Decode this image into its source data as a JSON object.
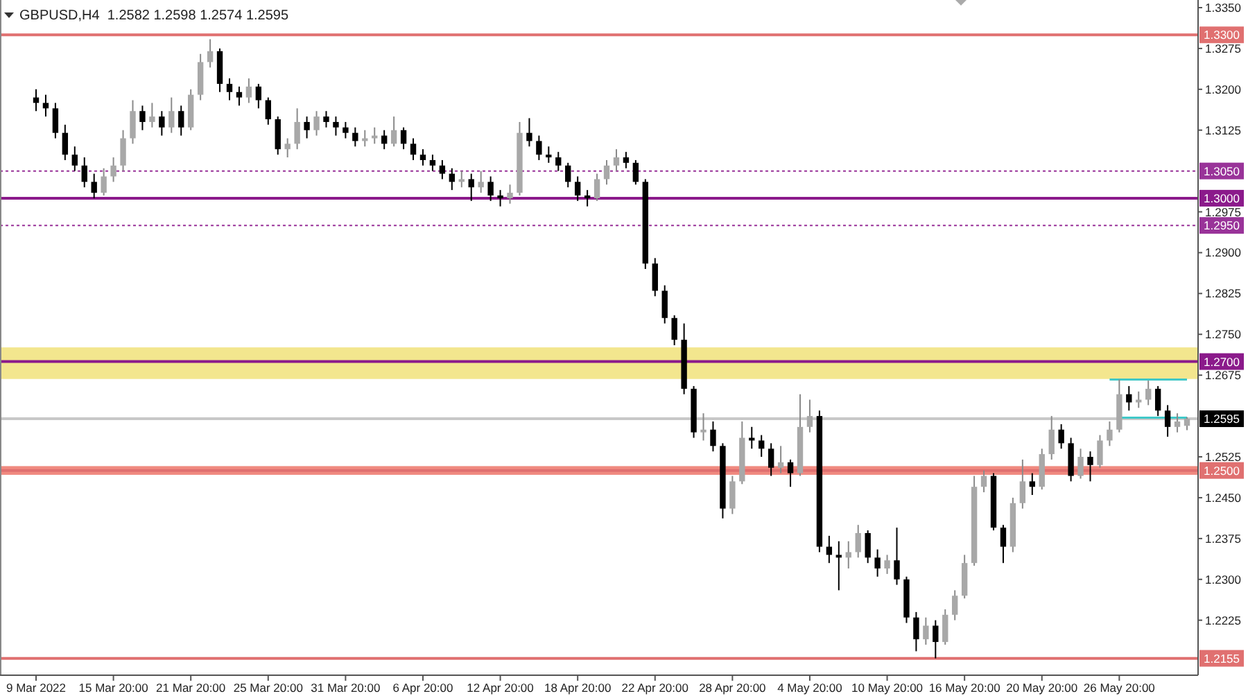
{
  "chart_data": {
    "type": "candlestick",
    "title": "GBPUSD,H4  1.2582 1.2598 1.2574 1.2595",
    "categories": [
      "9 Mar 2022",
      null,
      null,
      null,
      null,
      null,
      null,
      null,
      "15 Mar 20:00",
      null,
      null,
      null,
      null,
      null,
      null,
      null,
      "21 Mar 20:00",
      null,
      null,
      null,
      null,
      null,
      null,
      null,
      "25 Mar 20:00",
      null,
      null,
      null,
      null,
      null,
      null,
      null,
      "31 Mar 20:00",
      null,
      null,
      null,
      null,
      null,
      null,
      null,
      "6 Apr 20:00",
      null,
      null,
      null,
      null,
      null,
      null,
      null,
      "12 Apr 20:00",
      null,
      null,
      null,
      null,
      null,
      null,
      null,
      "18 Apr 20:00",
      null,
      null,
      null,
      null,
      null,
      null,
      null,
      "22 Apr 20:00",
      null,
      null,
      null,
      null,
      null,
      null,
      null,
      "28 Apr 20:00",
      null,
      null,
      null,
      null,
      null,
      null,
      null,
      "4 May 20:00",
      null,
      null,
      null,
      null,
      null,
      null,
      null,
      "10 May 20:00",
      null,
      null,
      null,
      null,
      null,
      null,
      null,
      "16 May 20:00",
      null,
      null,
      null,
      null,
      null,
      null,
      null,
      "20 May 20:00",
      null,
      null,
      null,
      null,
      null,
      null,
      null,
      "26 May 20:00",
      null,
      null,
      null,
      null,
      null,
      null,
      null
    ],
    "ohlc": [
      [
        1.3185,
        1.32,
        1.316,
        1.3175
      ],
      [
        1.3175,
        1.319,
        1.315,
        1.3165
      ],
      [
        1.3165,
        1.3175,
        1.311,
        1.312
      ],
      [
        1.312,
        1.3135,
        1.307,
        1.308
      ],
      [
        1.308,
        1.3095,
        1.305,
        1.306
      ],
      [
        1.306,
        1.3075,
        1.302,
        1.303
      ],
      [
        1.303,
        1.3045,
        1.3,
        1.301
      ],
      [
        1.301,
        1.3055,
        1.3005,
        1.304
      ],
      [
        1.304,
        1.3075,
        1.303,
        1.306
      ],
      [
        1.306,
        1.3125,
        1.305,
        1.311
      ],
      [
        1.311,
        1.318,
        1.31,
        1.316
      ],
      [
        1.316,
        1.317,
        1.3125,
        1.314
      ],
      [
        1.314,
        1.3175,
        1.313,
        1.315
      ],
      [
        1.315,
        1.316,
        1.3115,
        1.313
      ],
      [
        1.313,
        1.3185,
        1.312,
        1.316
      ],
      [
        1.316,
        1.317,
        1.3115,
        1.313
      ],
      [
        1.313,
        1.32,
        1.3125,
        1.319
      ],
      [
        1.319,
        1.3265,
        1.318,
        1.325
      ],
      [
        1.325,
        1.3292,
        1.324,
        1.327
      ],
      [
        1.327,
        1.3275,
        1.3195,
        1.321
      ],
      [
        1.321,
        1.322,
        1.318,
        1.3195
      ],
      [
        1.3195,
        1.3205,
        1.317,
        1.3185
      ],
      [
        1.3185,
        1.322,
        1.3175,
        1.3205
      ],
      [
        1.3205,
        1.321,
        1.3165,
        1.318
      ],
      [
        1.318,
        1.3185,
        1.3135,
        1.3145
      ],
      [
        1.3145,
        1.315,
        1.308,
        1.309
      ],
      [
        1.309,
        1.311,
        1.3075,
        1.31
      ],
      [
        1.31,
        1.3165,
        1.309,
        1.314
      ],
      [
        1.314,
        1.315,
        1.311,
        1.3125
      ],
      [
        1.3125,
        1.316,
        1.3115,
        1.315
      ],
      [
        1.315,
        1.316,
        1.313,
        1.314
      ],
      [
        1.314,
        1.315,
        1.3115,
        1.313
      ],
      [
        1.313,
        1.314,
        1.311,
        1.312
      ],
      [
        1.312,
        1.313,
        1.3095,
        1.3105
      ],
      [
        1.3105,
        1.3125,
        1.3095,
        1.311
      ],
      [
        1.311,
        1.313,
        1.31,
        1.3115
      ],
      [
        1.3115,
        1.3125,
        1.309,
        1.31
      ],
      [
        1.31,
        1.315,
        1.3095,
        1.3125
      ],
      [
        1.3125,
        1.313,
        1.309,
        1.31
      ],
      [
        1.31,
        1.311,
        1.307,
        1.308
      ],
      [
        1.308,
        1.309,
        1.306,
        1.307
      ],
      [
        1.307,
        1.308,
        1.305,
        1.306
      ],
      [
        1.306,
        1.307,
        1.3035,
        1.3045
      ],
      [
        1.3045,
        1.3055,
        1.3015,
        1.303
      ],
      [
        1.303,
        1.305,
        1.302,
        1.3035
      ],
      [
        1.3035,
        1.3045,
        1.2995,
        1.302
      ],
      [
        1.302,
        1.305,
        1.301,
        1.303
      ],
      [
        1.303,
        1.304,
        1.2995,
        1.3005
      ],
      [
        1.3005,
        1.3015,
        1.2985,
        1.3
      ],
      [
        1.3,
        1.3025,
        1.299,
        1.301
      ],
      [
        1.301,
        1.314,
        1.3005,
        1.312
      ],
      [
        1.312,
        1.3147,
        1.3095,
        1.3105
      ],
      [
        1.3105,
        1.3115,
        1.307,
        1.308
      ],
      [
        1.308,
        1.3095,
        1.3065,
        1.3075
      ],
      [
        1.3075,
        1.3085,
        1.305,
        1.306
      ],
      [
        1.306,
        1.3065,
        1.302,
        1.303
      ],
      [
        1.303,
        1.304,
        1.2995,
        1.3005
      ],
      [
        1.3005,
        1.3015,
        1.2985,
        1.3
      ],
      [
        1.3,
        1.3045,
        1.2995,
        1.3035
      ],
      [
        1.3035,
        1.307,
        1.3025,
        1.306
      ],
      [
        1.306,
        1.309,
        1.305,
        1.3075
      ],
      [
        1.3075,
        1.3085,
        1.3055,
        1.3065
      ],
      [
        1.3065,
        1.307,
        1.3025,
        1.303
      ],
      [
        1.303,
        1.3035,
        1.287,
        1.288
      ],
      [
        1.288,
        1.289,
        1.282,
        1.283
      ],
      [
        1.283,
        1.284,
        1.277,
        1.278
      ],
      [
        1.278,
        1.2785,
        1.273,
        1.274
      ],
      [
        1.274,
        1.277,
        1.264,
        1.265
      ],
      [
        1.265,
        1.2655,
        1.256,
        1.257
      ],
      [
        1.257,
        1.2605,
        1.2555,
        1.2575
      ],
      [
        1.2575,
        1.259,
        1.2535,
        1.2545
      ],
      [
        1.2545,
        1.255,
        1.2412,
        1.243
      ],
      [
        1.243,
        1.249,
        1.242,
        1.248
      ],
      [
        1.248,
        1.259,
        1.2475,
        1.256
      ],
      [
        1.256,
        1.258,
        1.254,
        1.2555
      ],
      [
        1.2555,
        1.2565,
        1.2525,
        1.254
      ],
      [
        1.254,
        1.255,
        1.249,
        1.2505
      ],
      [
        1.2505,
        1.2545,
        1.2495,
        1.2515
      ],
      [
        1.2515,
        1.252,
        1.247,
        1.2495
      ],
      [
        1.2495,
        1.264,
        1.249,
        1.258
      ],
      [
        1.258,
        1.263,
        1.257,
        1.26
      ],
      [
        1.26,
        1.261,
        1.235,
        1.236
      ],
      [
        1.236,
        1.238,
        1.233,
        1.2345
      ],
      [
        1.2345,
        1.237,
        1.228,
        1.234
      ],
      [
        1.234,
        1.237,
        1.232,
        1.235
      ],
      [
        1.235,
        1.24,
        1.234,
        1.2385
      ],
      [
        1.2385,
        1.239,
        1.233,
        1.234
      ],
      [
        1.234,
        1.2355,
        1.2305,
        1.232
      ],
      [
        1.232,
        1.2345,
        1.231,
        1.2335
      ],
      [
        1.2335,
        1.2395,
        1.229,
        1.23
      ],
      [
        1.23,
        1.2305,
        1.222,
        1.223
      ],
      [
        1.223,
        1.224,
        1.2168,
        1.219
      ],
      [
        1.219,
        1.223,
        1.218,
        1.2215
      ],
      [
        1.2215,
        1.2225,
        1.2155,
        1.2185
      ],
      [
        1.2185,
        1.2245,
        1.218,
        1.2235
      ],
      [
        1.2235,
        1.228,
        1.2225,
        1.227
      ],
      [
        1.227,
        1.2345,
        1.2265,
        1.233
      ],
      [
        1.233,
        1.249,
        1.2325,
        1.247
      ],
      [
        1.247,
        1.25,
        1.246,
        1.249
      ],
      [
        1.249,
        1.2495,
        1.239,
        1.2395
      ],
      [
        1.2395,
        1.24,
        1.233,
        1.236
      ],
      [
        1.236,
        1.245,
        1.235,
        1.244
      ],
      [
        1.244,
        1.252,
        1.243,
        1.248
      ],
      [
        1.248,
        1.2495,
        1.2455,
        1.247
      ],
      [
        1.247,
        1.254,
        1.2465,
        1.253
      ],
      [
        1.253,
        1.26,
        1.252,
        1.2575
      ],
      [
        1.2575,
        1.2585,
        1.254,
        1.255
      ],
      [
        1.255,
        1.256,
        1.248,
        1.249
      ],
      [
        1.249,
        1.254,
        1.2485,
        1.2525
      ],
      [
        1.2525,
        1.2535,
        1.248,
        1.251
      ],
      [
        1.251,
        1.2565,
        1.2505,
        1.2555
      ],
      [
        1.2555,
        1.259,
        1.2545,
        1.2575
      ],
      [
        1.2575,
        1.2667,
        1.257,
        1.264
      ],
      [
        1.264,
        1.2655,
        1.261,
        1.2625
      ],
      [
        1.2625,
        1.2645,
        1.2615,
        1.263
      ],
      [
        1.263,
        1.2665,
        1.262,
        1.265
      ],
      [
        1.265,
        1.2655,
        1.26,
        1.261
      ],
      [
        1.261,
        1.262,
        1.2562,
        1.258
      ],
      [
        1.258,
        1.2605,
        1.257,
        1.259
      ],
      [
        1.2582,
        1.2598,
        1.2574,
        1.2595
      ]
    ],
    "series": [
      {
        "type": "line",
        "color": "#40c8c8",
        "values": [
          null,
          null,
          null,
          null,
          null,
          null,
          null,
          null,
          null,
          null,
          null,
          null,
          null,
          null,
          null,
          null,
          null,
          null,
          null,
          null,
          null,
          null,
          null,
          null,
          null,
          null,
          null,
          null,
          null,
          null,
          null,
          null,
          null,
          null,
          null,
          null,
          null,
          null,
          null,
          null,
          null,
          null,
          null,
          null,
          null,
          null,
          null,
          null,
          null,
          null,
          null,
          null,
          null,
          null,
          null,
          null,
          null,
          null,
          null,
          null,
          null,
          null,
          null,
          null,
          null,
          null,
          null,
          null,
          null,
          null,
          null,
          null,
          null,
          null,
          null,
          null,
          null,
          null,
          null,
          null,
          null,
          null,
          null,
          null,
          null,
          null,
          null,
          null,
          null,
          null,
          null,
          null,
          null,
          null,
          null,
          null,
          null,
          null,
          null,
          null,
          null,
          null,
          null,
          null,
          null,
          null,
          null,
          null,
          null,
          null,
          null,
          1.2667,
          1.2667,
          1.2667,
          1.2667,
          1.2667,
          1.2667,
          1.2667,
          1.2667,
          1.2667
        ]
      },
      {
        "type": "line",
        "color": "#40c8c8",
        "values": [
          null,
          null,
          null,
          null,
          null,
          null,
          null,
          null,
          null,
          null,
          null,
          null,
          null,
          null,
          null,
          null,
          null,
          null,
          null,
          null,
          null,
          null,
          null,
          null,
          null,
          null,
          null,
          null,
          null,
          null,
          null,
          null,
          null,
          null,
          null,
          null,
          null,
          null,
          null,
          null,
          null,
          null,
          null,
          null,
          null,
          null,
          null,
          null,
          null,
          null,
          null,
          null,
          null,
          null,
          null,
          null,
          null,
          null,
          null,
          null,
          null,
          null,
          null,
          null,
          null,
          null,
          null,
          null,
          null,
          null,
          null,
          null,
          null,
          null,
          null,
          null,
          null,
          null,
          null,
          null,
          null,
          null,
          null,
          null,
          null,
          null,
          null,
          null,
          null,
          null,
          null,
          null,
          null,
          null,
          null,
          null,
          null,
          null,
          null,
          null,
          null,
          null,
          null,
          null,
          null,
          null,
          null,
          null,
          null,
          null,
          null,
          null,
          1.2597,
          1.2597,
          1.2597,
          1.2597,
          1.2597,
          1.2597,
          1.2597,
          1.2597
        ]
      }
    ],
    "ylim": [
      1.2124,
      1.3364
    ],
    "yticks": [
      {
        "value": 1.335,
        "label": "1.3350"
      },
      {
        "value": 1.3275,
        "label": "1.3275"
      },
      {
        "value": 1.32,
        "label": "1.3200"
      },
      {
        "value": 1.3125,
        "label": "1.3125"
      },
      {
        "value": 1.2975,
        "label": "1.2975"
      },
      {
        "value": 1.29,
        "label": "1.2900"
      },
      {
        "value": 1.2825,
        "label": "1.2825"
      },
      {
        "value": 1.275,
        "label": "1.2750"
      },
      {
        "value": 1.2675,
        "label": "1.2675"
      },
      {
        "value": 1.2525,
        "label": "1.2525"
      },
      {
        "value": 1.245,
        "label": "1.2450"
      },
      {
        "value": 1.2375,
        "label": "1.2375"
      },
      {
        "value": 1.23,
        "label": "1.2300"
      },
      {
        "value": 1.2225,
        "label": "1.2225"
      }
    ],
    "bands": [
      {
        "axis": "y",
        "from": 1.2668,
        "to": 1.2726,
        "color": "#f3e68e"
      },
      {
        "axis": "y",
        "from": 1.2492,
        "to": 1.2508,
        "color": "#f08a80"
      }
    ],
    "ref_lines": [
      {
        "axis": "y",
        "value": 1.33,
        "label": "1.3300",
        "color": "#e07070",
        "line_style": "solid"
      },
      {
        "axis": "y",
        "value": 1.305,
        "label": "1.3050",
        "color": "#993399",
        "line_style": "dotted"
      },
      {
        "axis": "y",
        "value": 1.3,
        "label": "1.3000",
        "color": "#8b1a8b",
        "line_style": "solid"
      },
      {
        "axis": "y",
        "value": 1.295,
        "label": "1.2950",
        "color": "#993399",
        "line_style": "dotted"
      },
      {
        "axis": "y",
        "value": 1.27,
        "label": "1.2700",
        "color": "#8b1a8b",
        "line_style": "solid"
      },
      {
        "axis": "y",
        "value": 1.2595,
        "label": "1.2595",
        "color": "#c8c8c8",
        "line_style": "solid"
      },
      {
        "axis": "y",
        "value": 1.25,
        "label": "1.2500",
        "color": "#e07070",
        "line_style": "solid"
      },
      {
        "axis": "y",
        "value": 1.2155,
        "label": "1.2155",
        "color": "#e07070",
        "line_style": "solid"
      }
    ],
    "grid": false
  }
}
